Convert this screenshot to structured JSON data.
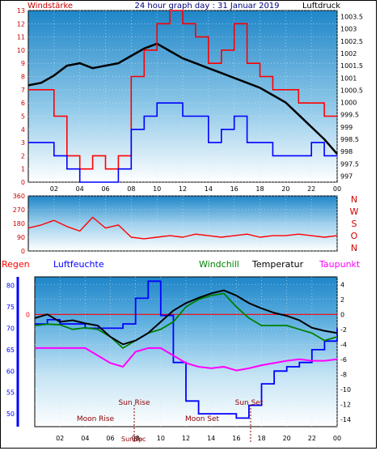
{
  "chart_data": [
    {
      "type": "line",
      "title": "24 hour graph day : 31 Januar 2019",
      "left_axis": {
        "label": "Windstärke",
        "ticks": [
          0,
          1,
          2,
          3,
          4,
          5,
          6,
          7,
          8,
          9,
          10,
          11,
          12,
          13
        ],
        "range": [
          0,
          13
        ]
      },
      "right_axis": {
        "label": "Luftdruck",
        "ticks": [
          "997",
          "997.5",
          "998",
          "998.5",
          "999",
          "999.5",
          "1000",
          "1000.5",
          "1001",
          "1001.5",
          "1002",
          "1002.5",
          "1003",
          "1003.5"
        ],
        "range": [
          996.75,
          1003.75
        ]
      },
      "x_ticks": [
        "02",
        "04",
        "06",
        "08",
        "10",
        "12",
        "14",
        "16",
        "18",
        "20",
        "22",
        "00"
      ],
      "series": [
        {
          "name": "Luftdruck",
          "color": "#000000",
          "x": [
            0,
            1,
            2,
            3,
            4,
            5,
            6,
            7,
            8,
            9,
            10,
            11,
            12,
            13,
            14,
            15,
            16,
            17,
            18,
            19,
            20,
            21,
            22,
            23,
            24
          ],
          "values": [
            1000.7,
            1000.8,
            1001.1,
            1001.5,
            1001.6,
            1001.4,
            1001.5,
            1001.6,
            1001.9,
            1002.2,
            1002.4,
            1002.1,
            1001.8,
            1001.6,
            1001.4,
            1001.2,
            1001.0,
            1000.8,
            1000.6,
            1000.3,
            1000.0,
            999.5,
            999.0,
            998.5,
            997.9
          ]
        },
        {
          "name": "Böen",
          "color": "#ff0000",
          "x": [
            0,
            1,
            2,
            3,
            4,
            5,
            6,
            7,
            8,
            9,
            10,
            11,
            12,
            13,
            14,
            15,
            16,
            17,
            18,
            19,
            20,
            21,
            22,
            23,
            24
          ],
          "values": [
            7,
            7,
            5,
            2,
            1,
            2,
            1,
            2,
            8,
            10,
            12,
            13,
            12,
            11,
            9,
            10,
            12,
            9,
            8,
            7,
            7,
            6,
            6,
            5,
            5
          ]
        },
        {
          "name": "Wind",
          "color": "#0000ff",
          "x": [
            0,
            1,
            2,
            3,
            4,
            5,
            6,
            7,
            8,
            9,
            10,
            11,
            12,
            13,
            14,
            15,
            16,
            17,
            18,
            19,
            20,
            21,
            22,
            23,
            24
          ],
          "values": [
            3,
            3,
            2,
            1,
            0,
            0,
            0,
            1,
            4,
            5,
            6,
            6,
            5,
            5,
            3,
            4,
            5,
            3,
            3,
            2,
            2,
            2,
            3,
            2,
            2
          ]
        }
      ]
    },
    {
      "type": "line",
      "left_axis": {
        "ticks": [
          0,
          90,
          180,
          270,
          360
        ],
        "range": [
          0,
          360
        ]
      },
      "right_axis": {
        "ticks": [
          "N",
          "W",
          "S",
          "O",
          "N"
        ]
      },
      "series": [
        {
          "name": "Windrichtung",
          "color": "#ff0000",
          "x": [
            0,
            1,
            2,
            3,
            4,
            5,
            6,
            7,
            8,
            9,
            10,
            11,
            12,
            13,
            14,
            15,
            16,
            17,
            18,
            19,
            20,
            21,
            22,
            23,
            24
          ],
          "values": [
            150,
            170,
            200,
            160,
            130,
            220,
            150,
            170,
            90,
            80,
            90,
            100,
            90,
            110,
            100,
            90,
            100,
            110,
            90,
            100,
            100,
            110,
            100,
            90,
            100
          ]
        }
      ]
    },
    {
      "type": "line",
      "legend": [
        "Regen",
        "Luftfeuchte",
        "Windchill",
        "Temperatur",
        "Taupunkt"
      ],
      "left_axis_humidity": {
        "ticks": [
          50,
          55,
          60,
          65,
          70,
          75,
          80
        ],
        "range": [
          47,
          82
        ]
      },
      "left_axis_rain": {
        "ticks": [
          0
        ]
      },
      "right_axis": {
        "ticks": [
          4,
          2,
          0,
          -2,
          -4,
          -6,
          -8,
          -10,
          -12,
          -14
        ],
        "range": [
          -15,
          5
        ]
      },
      "annotations": [
        "Moon Rise",
        "Sun Rise",
        "Moon Set",
        "Sun Set",
        "SunUp",
        "Sec"
      ],
      "series": [
        {
          "name": "Regen",
          "color": "#ff0000",
          "x": [
            0,
            24
          ],
          "values": [
            0,
            0
          ]
        },
        {
          "name": "Luftfeuchte",
          "color": "#0000ff",
          "x": [
            0,
            1,
            2,
            3,
            4,
            5,
            6,
            7,
            8,
            9,
            10,
            11,
            12,
            13,
            14,
            15,
            16,
            17,
            18,
            19,
            20,
            21,
            22,
            23,
            24
          ],
          "values": [
            71,
            72,
            71,
            71,
            70,
            70,
            70,
            71,
            77,
            81,
            73,
            62,
            53,
            50,
            50,
            50,
            49,
            52,
            57,
            60,
            61,
            62,
            65,
            67,
            70
          ]
        },
        {
          "name": "Windchill",
          "color": "#008000",
          "x": [
            0,
            1,
            2,
            3,
            4,
            5,
            6,
            7,
            8,
            9,
            10,
            11,
            12,
            13,
            14,
            15,
            16,
            17,
            18,
            19,
            20,
            21,
            22,
            23,
            24
          ],
          "values": [
            -1.5,
            -1.3,
            -1.4,
            -2.0,
            -1.8,
            -2.0,
            -3.0,
            -4.5,
            -3.5,
            -2.5,
            -2.0,
            -1.0,
            1.0,
            2.0,
            2.5,
            2.8,
            1.0,
            -0.5,
            -1.5,
            -1.5,
            -1.5,
            -2.0,
            -2.5,
            -3.5,
            -3.0
          ]
        },
        {
          "name": "Temperatur",
          "color": "#000000",
          "x": [
            0,
            1,
            2,
            3,
            4,
            5,
            6,
            7,
            8,
            9,
            10,
            11,
            12,
            13,
            14,
            15,
            16,
            17,
            18,
            19,
            20,
            21,
            22,
            23,
            24
          ],
          "values": [
            -0.5,
            0,
            -1.0,
            -0.8,
            -1.2,
            -1.5,
            -3.0,
            -4.0,
            -3.5,
            -2.5,
            -1.0,
            0.5,
            1.5,
            2.2,
            2.8,
            3.2,
            2.5,
            1.5,
            0.8,
            0.2,
            -0.2,
            -0.8,
            -1.8,
            -2.2,
            -2.5
          ]
        },
        {
          "name": "Taupunkt",
          "color": "#ff00ff",
          "x": [
            0,
            1,
            2,
            3,
            4,
            5,
            6,
            7,
            8,
            9,
            10,
            11,
            12,
            13,
            14,
            15,
            16,
            17,
            18,
            19,
            20,
            21,
            22,
            23,
            24
          ],
          "values": [
            -4.5,
            -4.5,
            -4.5,
            -4.5,
            -4.5,
            -5.5,
            -6.5,
            -7.0,
            -5.0,
            -4.5,
            -4.5,
            -5.5,
            -6.5,
            -7.0,
            -7.2,
            -7.0,
            -7.5,
            -7.2,
            -6.8,
            -6.5,
            -6.2,
            -6.0,
            -6.2,
            -6.2,
            -6.0
          ]
        }
      ]
    }
  ],
  "colors": {
    "sky_top": "#1f86c8",
    "sky_bottom": "#ffffff",
    "frame": "#000000",
    "axis_red": "#cc0000",
    "axis_blue": "#0000ff",
    "regen": "#ff0000",
    "luftfeuchte": "#0000ff",
    "windchill": "#008000",
    "temperatur": "#000000",
    "taupunkt": "#ff00ff"
  }
}
